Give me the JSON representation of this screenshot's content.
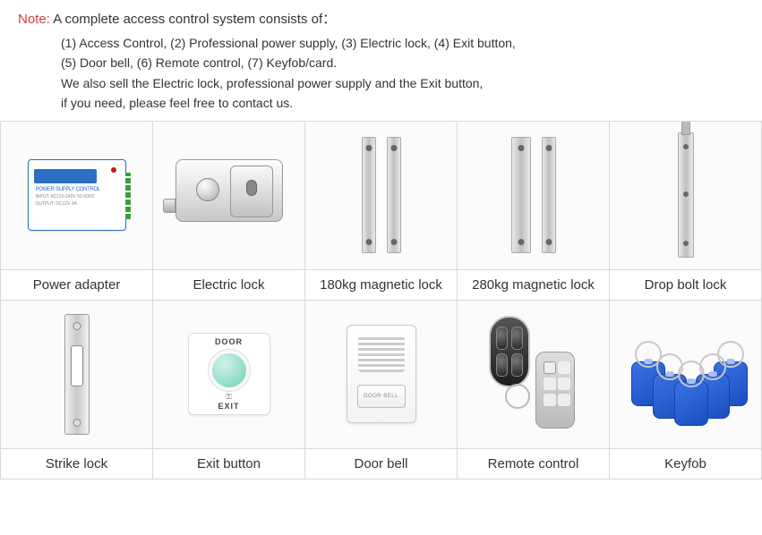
{
  "note": {
    "label": "Note:",
    "label_color": "#d43f3a",
    "title_rest": " A complete access control system consists of：",
    "line1": "(1) Access Control, (2) Professional power supply, (3) Electric lock, (4) Exit button,",
    "line2": "(5) Door bell, (6) Remote control, (7) Keyfob/card.",
    "line3": "We also sell the Electric lock, professional power supply and the Exit button,",
    "line4": "if you need, please feel free to contact us."
  },
  "grid": {
    "columns": 5,
    "border_color": "#d8d8d8",
    "label_font_size": 15,
    "label_color": "#333333",
    "cell_bg": "#ffffff"
  },
  "products": [
    {
      "id": "power-adapter",
      "label": "Power adapter",
      "icon": "psu"
    },
    {
      "id": "electric-lock",
      "label": "Electric lock",
      "icon": "elock"
    },
    {
      "id": "mag-180",
      "label": "180kg magnetic lock",
      "icon": "maglock-thin"
    },
    {
      "id": "mag-280",
      "label": "280kg magnetic lock",
      "icon": "maglock-thick"
    },
    {
      "id": "drop-bolt",
      "label": "Drop bolt lock",
      "icon": "dropbolt"
    },
    {
      "id": "strike-lock",
      "label": "Strike lock",
      "icon": "strike"
    },
    {
      "id": "exit-button",
      "label": "Exit button",
      "icon": "exitbtn",
      "exit_text_top": "DOOR",
      "exit_text_mid": "🔑",
      "exit_text_bot": "EXIT"
    },
    {
      "id": "door-bell",
      "label": "Door bell",
      "icon": "doorbell",
      "doorbell_btn_text": "DOOR BELL"
    },
    {
      "id": "remote",
      "label": "Remote control",
      "icon": "remote"
    },
    {
      "id": "keyfob",
      "label": "Keyfob",
      "icon": "keyfobs",
      "fob_color": "#2a5fd8"
    }
  ],
  "psu_detail": {
    "header": "POWER SUPPLY CONTROL",
    "l1": "INPUT: AC110-240V 50-60HZ",
    "l2": "OUTPUT: DC12V 3A"
  }
}
